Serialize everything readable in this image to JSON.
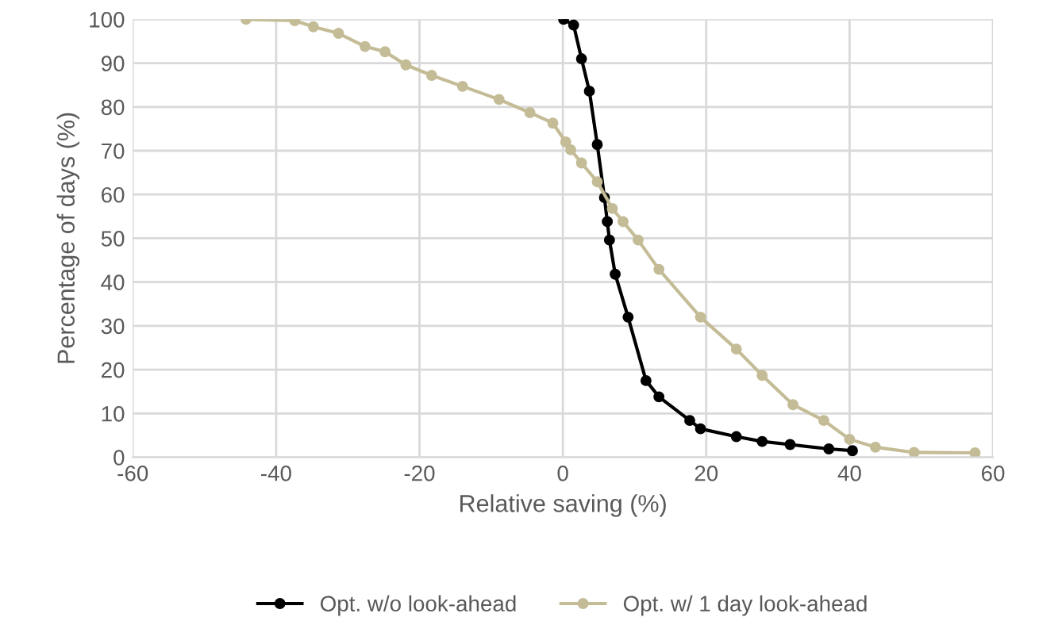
{
  "chart_data": {
    "type": "line",
    "xlabel": "Relative saving (%)",
    "ylabel": "Percentage of days (%)",
    "xlim": [
      -60,
      60
    ],
    "xticks": [
      -60,
      -40,
      -20,
      0,
      20,
      40,
      60
    ],
    "ylim": [
      0,
      100
    ],
    "yticks": [
      0,
      10,
      20,
      30,
      40,
      50,
      60,
      70,
      80,
      90,
      100
    ],
    "grid": true,
    "legend": "bottom",
    "marker": "circle",
    "line_style": "solid",
    "series": [
      {
        "name": "Opt. w/o look-ahead",
        "color": "#000000",
        "x": [
          0.1,
          1.5,
          2.6,
          3.7,
          4.8,
          5.8,
          6.2,
          6.5,
          7.3,
          9.1,
          11.6,
          13.4,
          17.7,
          19.2,
          24.2,
          27.8,
          31.7,
          37.1,
          40.4
        ],
        "values": [
          100,
          98.7,
          91,
          83.6,
          71.4,
          59.3,
          53.8,
          49.6,
          41.8,
          32,
          17.5,
          13.8,
          8.4,
          6.5,
          4.7,
          3.6,
          2.9,
          1.9,
          1.5
        ]
      },
      {
        "name": "Opt. w/ 1 day look-ahead",
        "color": "#c4bc96",
        "x": [
          -44.2,
          -37.4,
          -34.8,
          -31.3,
          -27.6,
          -24.8,
          -21.9,
          -18.3,
          -14,
          -8.9,
          -4.6,
          -1.4,
          0.4,
          1.1,
          2.6,
          4.8,
          6.9,
          8.4,
          10.5,
          13.4,
          19.2,
          24.2,
          27.8,
          32.1,
          36.4,
          40,
          43.6,
          49,
          57.5
        ],
        "values": [
          100,
          99.7,
          98.3,
          96.8,
          93.8,
          92.6,
          89.6,
          87.2,
          84.7,
          81.7,
          78.7,
          76.3,
          72,
          70.2,
          67.2,
          62.9,
          56.8,
          53.8,
          49.6,
          42.9,
          32,
          24.7,
          18.7,
          12,
          8.4,
          4.1,
          2.3,
          1.1,
          1
        ]
      }
    ]
  }
}
